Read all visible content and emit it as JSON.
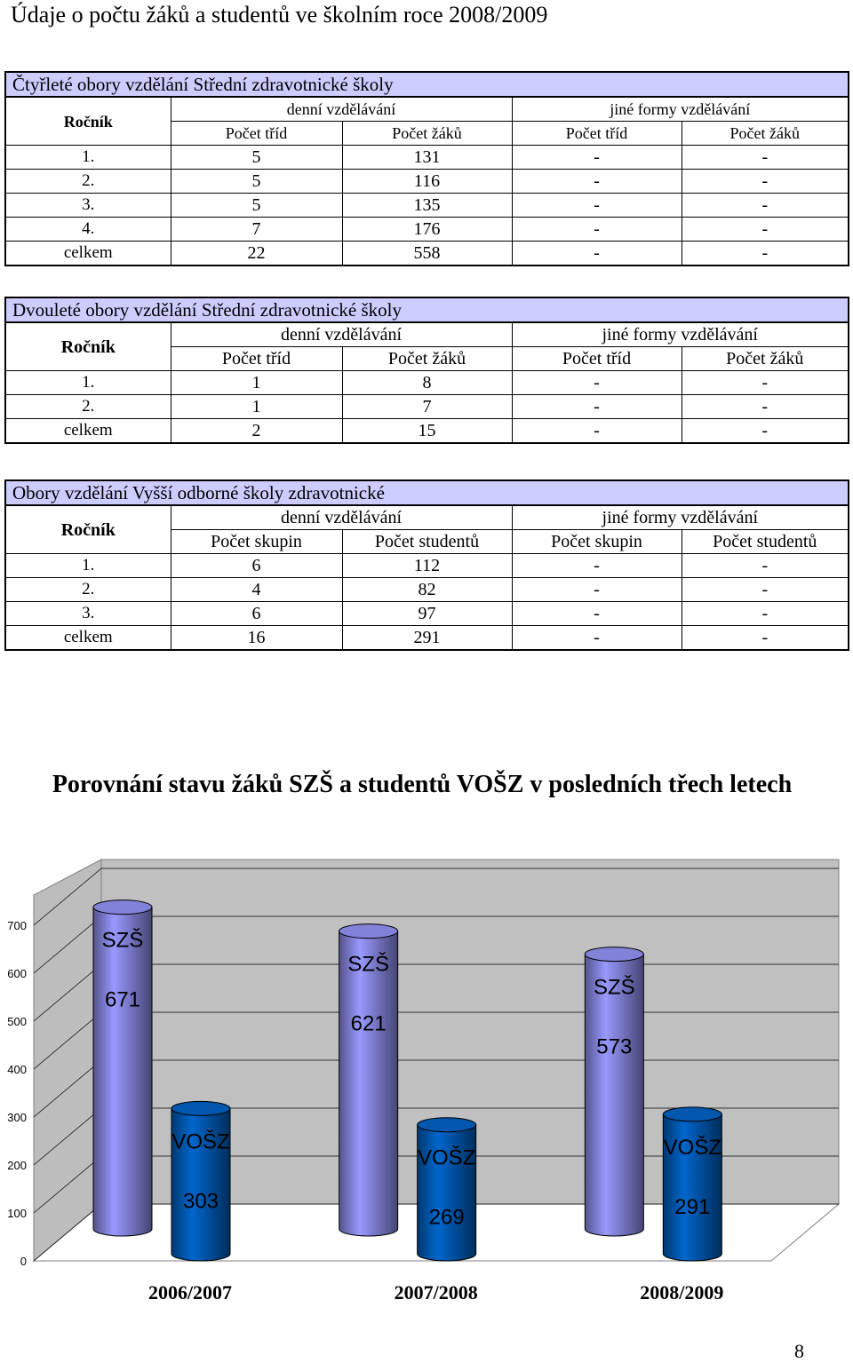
{
  "page": {
    "title": "Údaje o počtu žáků a studentů ve školním roce 2008/2009",
    "page_number": "8"
  },
  "tables": [
    {
      "title": "Čtyřleté obory vzdělání Střední zdravotnické školy",
      "rocnik_label": "Ročník",
      "group_headers": [
        "denní vzdělávání",
        "jiné formy vzdělávání"
      ],
      "sub_headers": [
        "Počet tříd",
        "Počet žáků",
        "Počet tříd",
        "Počet žáků"
      ],
      "rows": [
        [
          "1.",
          "5",
          "131",
          "-",
          "-"
        ],
        [
          "2.",
          "5",
          "116",
          "-",
          "-"
        ],
        [
          "3.",
          "5",
          "135",
          "-",
          "-"
        ],
        [
          "4.",
          "7",
          "176",
          "-",
          "-"
        ],
        [
          "celkem",
          "22",
          "558",
          "-",
          "-"
        ]
      ]
    },
    {
      "title": "Dvouleté obory vzdělání Střední zdravotnické školy",
      "rocnik_label": "Ročník",
      "group_headers": [
        "denní vzdělávání",
        "jiné formy vzdělávání"
      ],
      "sub_headers": [
        "Počet tříd",
        "Počet žáků",
        "Počet tříd",
        "Počet žáků"
      ],
      "rows": [
        [
          "1.",
          "1",
          "8",
          "-",
          "-"
        ],
        [
          "2.",
          "1",
          "7",
          "-",
          "-"
        ],
        [
          "celkem",
          "2",
          "15",
          "-",
          "-"
        ]
      ]
    },
    {
      "title": "Obory vzdělání Vyšší odborné školy zdravotnické",
      "rocnik_label": "Ročník",
      "group_headers": [
        "denní vzdělávání",
        "jiné formy vzdělávání"
      ],
      "sub_headers": [
        "Počet skupin",
        "Počet studentů",
        "Počet skupin",
        "Počet studentů"
      ],
      "rows": [
        [
          "1.",
          "6",
          "112",
          "-",
          "-"
        ],
        [
          "2.",
          "4",
          "82",
          "-",
          "-"
        ],
        [
          "3.",
          "6",
          "97",
          "-",
          "-"
        ],
        [
          "celkem",
          "16",
          "291",
          "-",
          "-"
        ]
      ]
    }
  ],
  "chart_data": {
    "type": "bar",
    "title": "Porovnání stavu žáků SZŠ a studentů VOŠZ v posledních třech letech",
    "categories": [
      "2006/2007",
      "2007/2008",
      "2008/2009"
    ],
    "series": [
      {
        "name": "SZŠ",
        "values": [
          671,
          621,
          573
        ],
        "color": "#9999ff"
      },
      {
        "name": "VOŠZ",
        "values": [
          303,
          269,
          291
        ],
        "color": "#0066cc"
      }
    ],
    "ylim": [
      0,
      700
    ],
    "yticks": [
      0,
      100,
      200,
      300,
      400,
      500,
      600,
      700
    ],
    "grid": true
  }
}
